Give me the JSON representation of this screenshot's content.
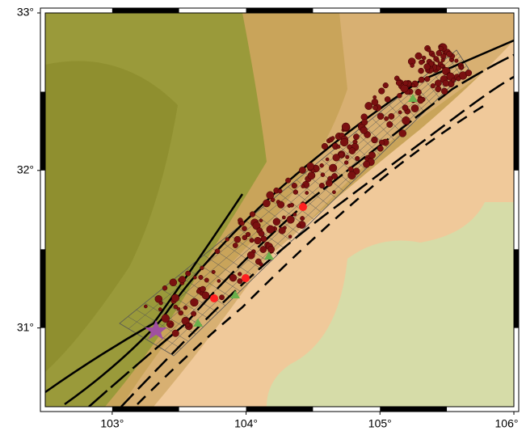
{
  "map": {
    "xlim": [
      102.5,
      106
    ],
    "ylim": [
      30.5,
      33
    ],
    "xticks": [
      {
        "value": 103,
        "label": "103°"
      },
      {
        "value": 104,
        "label": "104°"
      },
      {
        "value": 105,
        "label": "105°"
      },
      {
        "value": 106,
        "label": "106°"
      }
    ],
    "yticks": [
      {
        "value": 31,
        "label": "31°"
      },
      {
        "value": 32,
        "label": "32°"
      },
      {
        "value": 33,
        "label": "33°"
      }
    ]
  }
}
